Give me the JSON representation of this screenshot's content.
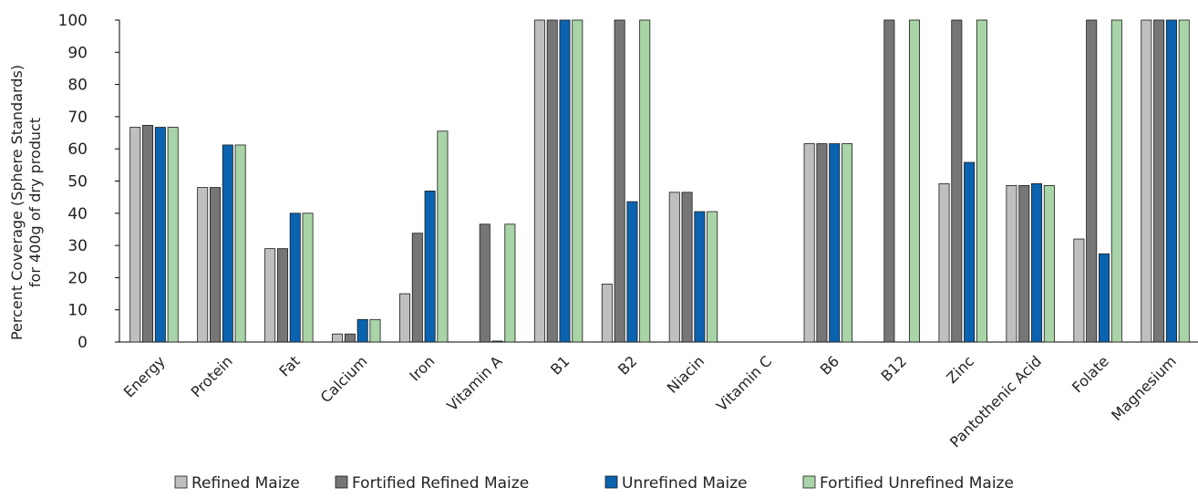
{
  "chart_data": {
    "type": "bar",
    "title": "",
    "xlabel": "",
    "ylabel": [
      "Percent Coverage (Sphere Standards)",
      "for 400g of dry product"
    ],
    "ylim": [
      0,
      100
    ],
    "yticks": [
      0,
      10,
      20,
      30,
      40,
      50,
      60,
      70,
      80,
      90,
      100
    ],
    "grid": false,
    "legend_position": "bottom",
    "categories": [
      "Energy",
      "Protein",
      "Fat",
      "Calcium",
      "Iron",
      "Vitamin A",
      "B1",
      "B2",
      "Niacin",
      "Vitamin C",
      "B6",
      "B12",
      "Zinc",
      "Pantothenic Acid",
      "Folate",
      "Magnesium"
    ],
    "series": [
      {
        "name": "Refined Maize",
        "color": "#bfbfbf",
        "values": [
          66.7,
          48,
          29,
          2.5,
          15,
          0,
          100,
          18,
          46.5,
          0,
          61.6,
          0,
          49.2,
          48.6,
          32,
          100
        ]
      },
      {
        "name": "Fortified Refined Maize",
        "color": "#767676",
        "values": [
          67.3,
          48,
          29,
          2.5,
          33.8,
          36.6,
          100,
          100,
          46.5,
          0,
          61.6,
          100,
          100,
          48.6,
          100,
          100
        ]
      },
      {
        "name": "Unrefined Maize",
        "color": "#0b63b0",
        "values": [
          66.7,
          61.2,
          40,
          7,
          46.9,
          0.3,
          100,
          43.6,
          40.5,
          0,
          61.6,
          0,
          55.8,
          49.2,
          27.4,
          100
        ]
      },
      {
        "name": "Fortified Unrefined Maize",
        "color": "#a9d4a7",
        "values": [
          66.7,
          61.2,
          40,
          7,
          65.5,
          36.6,
          100,
          100,
          40.5,
          0,
          61.6,
          100,
          100,
          48.6,
          100,
          100
        ]
      }
    ]
  }
}
